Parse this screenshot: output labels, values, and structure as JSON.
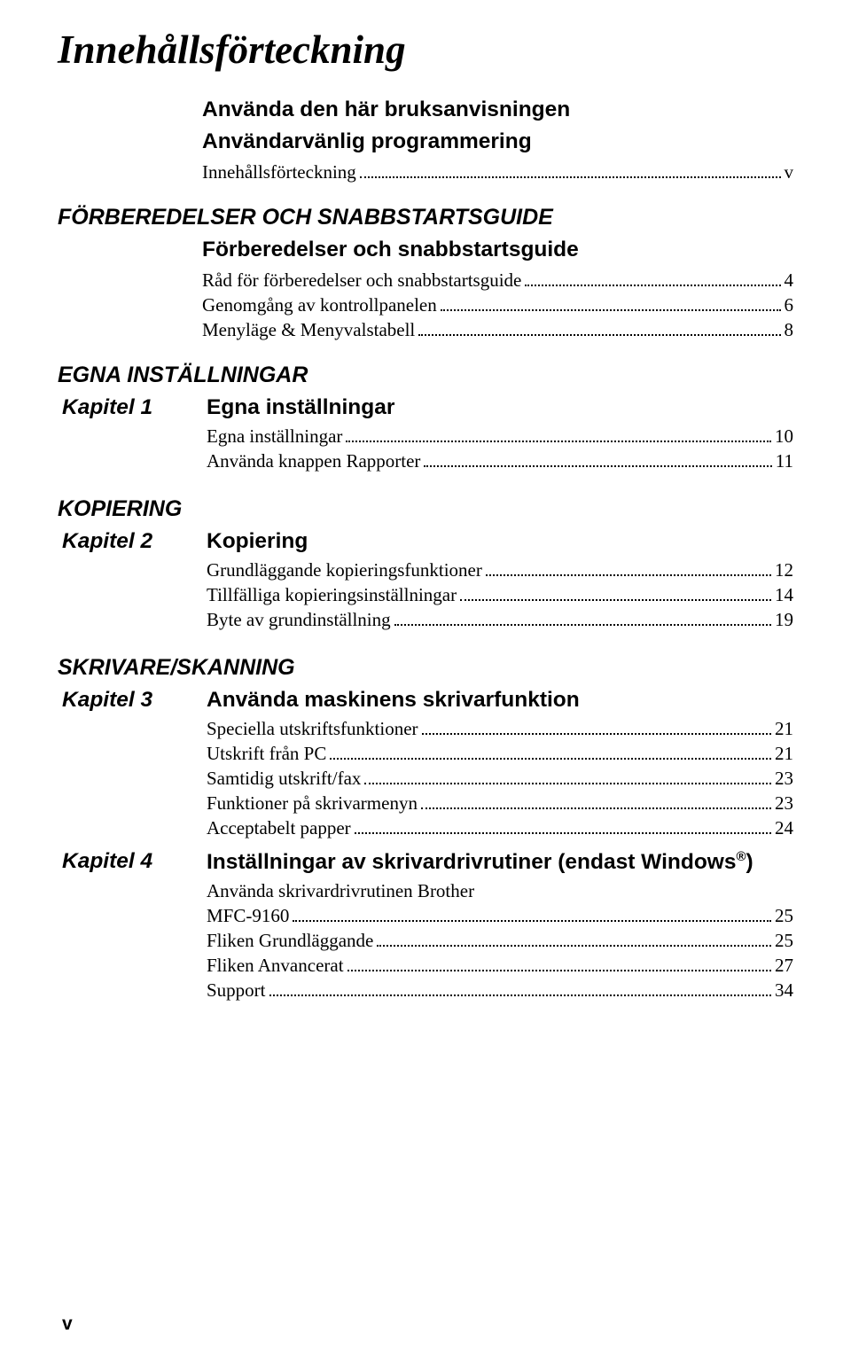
{
  "page_title": "Innehållsförteckning",
  "page_number": "v",
  "intro": {
    "h1": "Använda den här bruksanvisningen",
    "h2": "Användarvänlig programmering",
    "toc": [
      {
        "label": "Innehållsförteckning",
        "pg": "v"
      }
    ]
  },
  "sections": [
    {
      "title": "FÖRBEREDELSER OCH SNABBSTARTSGUIDE",
      "chapters": [
        {
          "label": "",
          "title": "Förberedelser och snabbstartsguide",
          "toc": [
            {
              "label": "Råd för förberedelser och snabbstartsguide",
              "pg": "4"
            },
            {
              "label": "Genomgång av kontrollpanelen",
              "pg": "6"
            },
            {
              "label": "Menyläge & Menyvalstabell",
              "pg": "8"
            }
          ]
        }
      ]
    },
    {
      "title": "EGNA INSTÄLLNINGAR",
      "chapters": [
        {
          "label": "Kapitel 1",
          "title": "Egna inställningar",
          "toc": [
            {
              "label": "Egna inställningar",
              "pg": "10"
            },
            {
              "label": "Använda knappen Rapporter",
              "pg": "11"
            }
          ]
        }
      ]
    },
    {
      "title": "KOPIERING",
      "chapters": [
        {
          "label": "Kapitel 2",
          "title": "Kopiering",
          "toc": [
            {
              "label": "Grundläggande kopieringsfunktioner",
              "pg": "12"
            },
            {
              "label": "Tillfälliga kopieringsinställningar",
              "pg": "14"
            },
            {
              "label": "Byte av grundinställning",
              "pg": "19"
            }
          ]
        }
      ]
    },
    {
      "title": "SKRIVARE/SKANNING",
      "chapters": [
        {
          "label": "Kapitel 3",
          "title": "Använda maskinens skrivarfunktion",
          "toc": [
            {
              "label": "Speciella utskriftsfunktioner",
              "pg": "21"
            },
            {
              "label": "Utskrift från PC",
              "pg": "21"
            },
            {
              "label": "Samtidig utskrift/fax",
              "pg": "23"
            },
            {
              "label": "Funktioner på skrivarmenyn",
              "pg": "23"
            },
            {
              "label": "Acceptabelt papper",
              "pg": "24"
            }
          ]
        },
        {
          "label": "Kapitel 4",
          "title_html": "Inställningar av skrivardrivrutiner (endast Windows<sup>®</sup>)",
          "toc": [
            {
              "label": "Använda skrivardrivrutinen Brother",
              "pg": ""
            },
            {
              "label": "MFC-9160",
              "pg": "25"
            },
            {
              "label": "Fliken Grundläggande",
              "pg": "25"
            },
            {
              "label": "Fliken Anvancerat",
              "pg": "27"
            },
            {
              "label": "Support",
              "pg": "34"
            }
          ]
        }
      ]
    }
  ]
}
